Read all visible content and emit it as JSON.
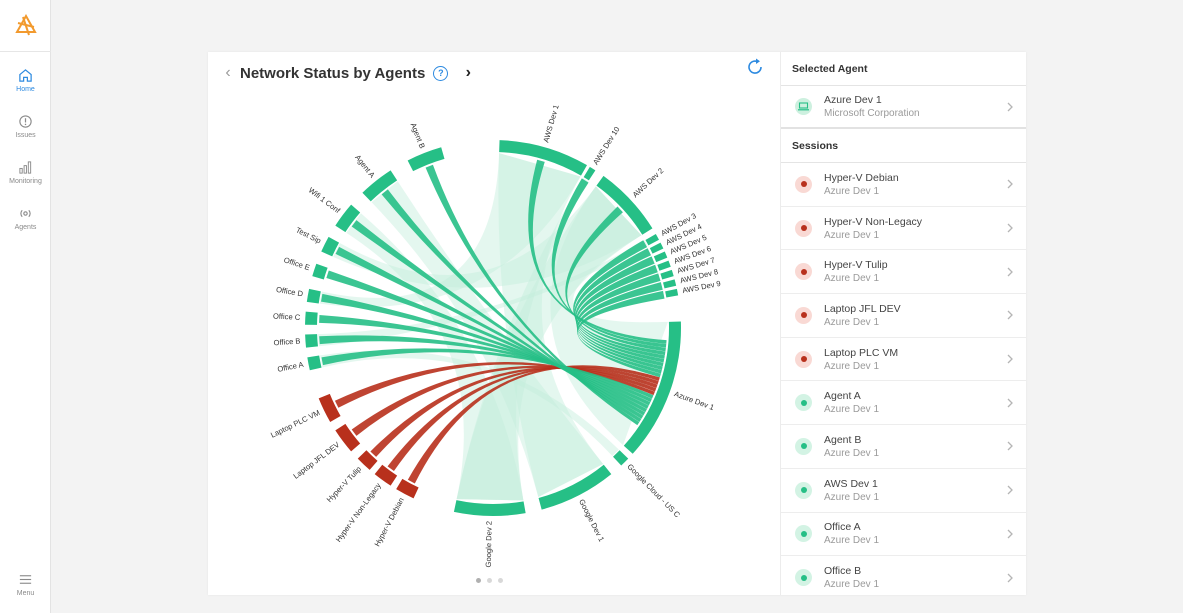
{
  "sidebar": {
    "logo_icon": "app-logo-icon",
    "items": [
      {
        "label": "Home",
        "icon": "home-icon",
        "active": true
      },
      {
        "label": "Issues",
        "icon": "alert-circle-icon",
        "active": false
      },
      {
        "label": "Monitoring",
        "icon": "bar-chart-icon",
        "active": false
      },
      {
        "label": "Agents",
        "icon": "broadcast-icon",
        "active": false
      }
    ],
    "menu_label": "Menu"
  },
  "chart_panel": {
    "title": "Network Status by Agents",
    "help_glyph": "?",
    "prev_glyph": "‹",
    "next_glyph": "›",
    "page_count": 3,
    "active_page": 0
  },
  "chart_data": {
    "type": "chord",
    "title": "Network Status by Agents",
    "groups": [
      {
        "name": "AWS Dev 1",
        "status": "ok"
      },
      {
        "name": "AWS Dev 10",
        "status": "ok"
      },
      {
        "name": "AWS Dev 2",
        "status": "ok"
      },
      {
        "name": "AWS Dev 3",
        "status": "ok"
      },
      {
        "name": "AWS Dev 4",
        "status": "ok"
      },
      {
        "name": "AWS Dev 5",
        "status": "ok"
      },
      {
        "name": "AWS Dev 6",
        "status": "ok"
      },
      {
        "name": "AWS Dev 7",
        "status": "ok"
      },
      {
        "name": "AWS Dev 8",
        "status": "ok"
      },
      {
        "name": "AWS Dev 9",
        "status": "ok"
      },
      {
        "name": "Azure Dev 1",
        "status": "ok"
      },
      {
        "name": "Google Cloud - US C",
        "status": "ok"
      },
      {
        "name": "Google Dev 1",
        "status": "ok"
      },
      {
        "name": "Google Dev 2",
        "status": "ok"
      },
      {
        "name": "Hyper-V Debian",
        "status": "error"
      },
      {
        "name": "Hyper-V Non-Legacy",
        "status": "error"
      },
      {
        "name": "Hyper-V Tulip",
        "status": "error"
      },
      {
        "name": "Laptop JFL DEV",
        "status": "error"
      },
      {
        "name": "Laptop PLC VM",
        "status": "error"
      },
      {
        "name": "Office A",
        "status": "ok"
      },
      {
        "name": "Office B",
        "status": "ok"
      },
      {
        "name": "Office C",
        "status": "ok"
      },
      {
        "name": "Office D",
        "status": "ok"
      },
      {
        "name": "Office E",
        "status": "ok"
      },
      {
        "name": "Test Sip",
        "status": "ok"
      },
      {
        "name": "Wifi 1 Conf",
        "status": "ok"
      },
      {
        "name": "Agent A",
        "status": "ok"
      },
      {
        "name": "Agent B",
        "status": "ok"
      }
    ],
    "status_colors": {
      "ok": "#26bf86",
      "error": "#b8301c"
    },
    "focus_group": "Azure Dev 1"
  },
  "selected_agent": {
    "heading": "Selected Agent",
    "name": "Azure Dev 1",
    "vendor": "Microsoft Corporation",
    "icon": "laptop-icon"
  },
  "sessions": {
    "heading": "Sessions",
    "items": [
      {
        "name": "Hyper-V Debian",
        "agent": "Azure Dev 1",
        "status": "error"
      },
      {
        "name": "Hyper-V Non-Legacy",
        "agent": "Azure Dev 1",
        "status": "error"
      },
      {
        "name": "Hyper-V Tulip",
        "agent": "Azure Dev 1",
        "status": "error"
      },
      {
        "name": "Laptop JFL DEV",
        "agent": "Azure Dev 1",
        "status": "error"
      },
      {
        "name": "Laptop PLC VM",
        "agent": "Azure Dev 1",
        "status": "error"
      },
      {
        "name": "Agent A",
        "agent": "Azure Dev 1",
        "status": "ok"
      },
      {
        "name": "Agent B",
        "agent": "Azure Dev 1",
        "status": "ok"
      },
      {
        "name": "AWS Dev 1",
        "agent": "Azure Dev 1",
        "status": "ok"
      },
      {
        "name": "Office A",
        "agent": "Azure Dev 1",
        "status": "ok"
      },
      {
        "name": "Office B",
        "agent": "Azure Dev 1",
        "status": "ok"
      }
    ]
  },
  "colors": {
    "accent": "#2d8ae0",
    "ok": "#26bf86",
    "ok_bg": "#d3f3e4",
    "error": "#b8301c",
    "error_bg": "#f9d9d4"
  }
}
